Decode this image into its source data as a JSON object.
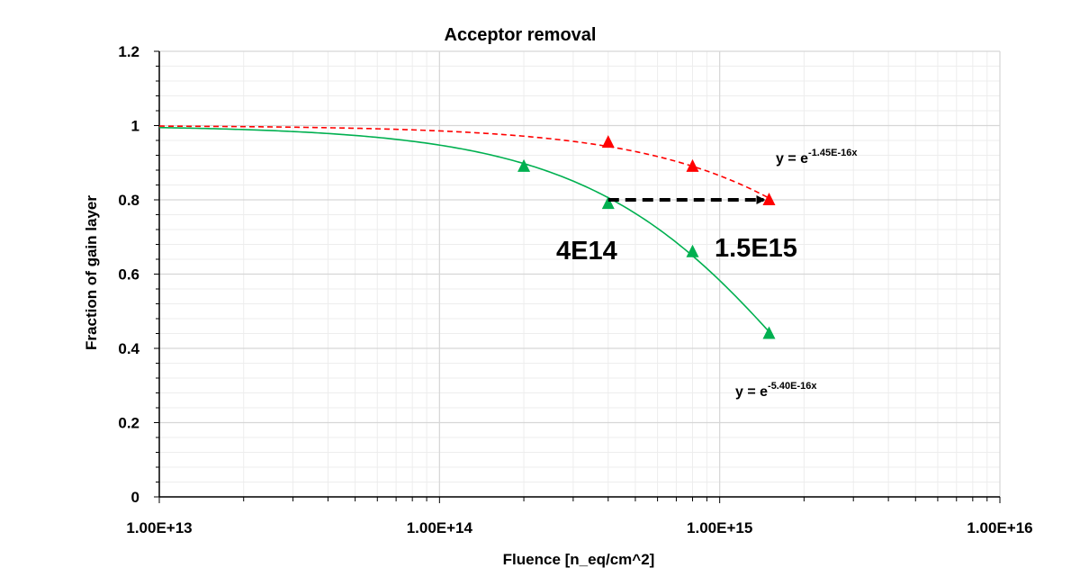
{
  "chart_data": {
    "type": "scatter",
    "title": "Acceptor removal",
    "xlabel": "Fluence [n_eq/cm^2]",
    "ylabel": "Fraction of gain layer",
    "x_scale": "log",
    "xlim": [
      10000000000000.0,
      1e+16
    ],
    "ylim": [
      0,
      1.2
    ],
    "x_ticks": [
      10000000000000.0,
      100000000000000.0,
      1000000000000000.0,
      1e+16
    ],
    "x_tick_labels": [
      "1.00E+13",
      "1.00E+14",
      "1.00E+15",
      "1.00E+16"
    ],
    "y_ticks": [
      0,
      0.2,
      0.4,
      0.6,
      0.8,
      1,
      1.2
    ],
    "y_tick_labels": [
      "0",
      "0.2",
      "0.4",
      "0.6",
      "0.8",
      "1",
      "1.2"
    ],
    "grid": true,
    "series": [
      {
        "color": "#00B050",
        "marker": "triangle",
        "fit_line": "solid",
        "fit_coefficient": 5.4e-16,
        "x": [
          200000000000000.0,
          400000000000000.0,
          800000000000000.0,
          1500000000000000.0
        ],
        "y": [
          0.89,
          0.79,
          0.66,
          0.44
        ]
      },
      {
        "color": "#FF0000",
        "marker": "triangle",
        "fit_line": "dashed",
        "fit_coefficient": 1.45e-16,
        "x": [
          400000000000000.0,
          800000000000000.0,
          1500000000000000.0
        ],
        "y": [
          0.955,
          0.89,
          0.8
        ]
      }
    ],
    "annotations": {
      "red_equation": {
        "base": "y = e",
        "exponent": "-1.45E-16x"
      },
      "green_equation": {
        "base": "y = e",
        "exponent": "-5.40E-16x"
      },
      "green_label": {
        "text": "4E14",
        "color": "#00B050"
      },
      "red_label": {
        "text": "1.5E15",
        "color": "#FF0000"
      },
      "arrow": {
        "from": [
          400000000000000.0,
          0.8
        ],
        "to": [
          1500000000000000.0,
          0.8
        ],
        "style": "dashed",
        "color": "#000000"
      }
    }
  }
}
